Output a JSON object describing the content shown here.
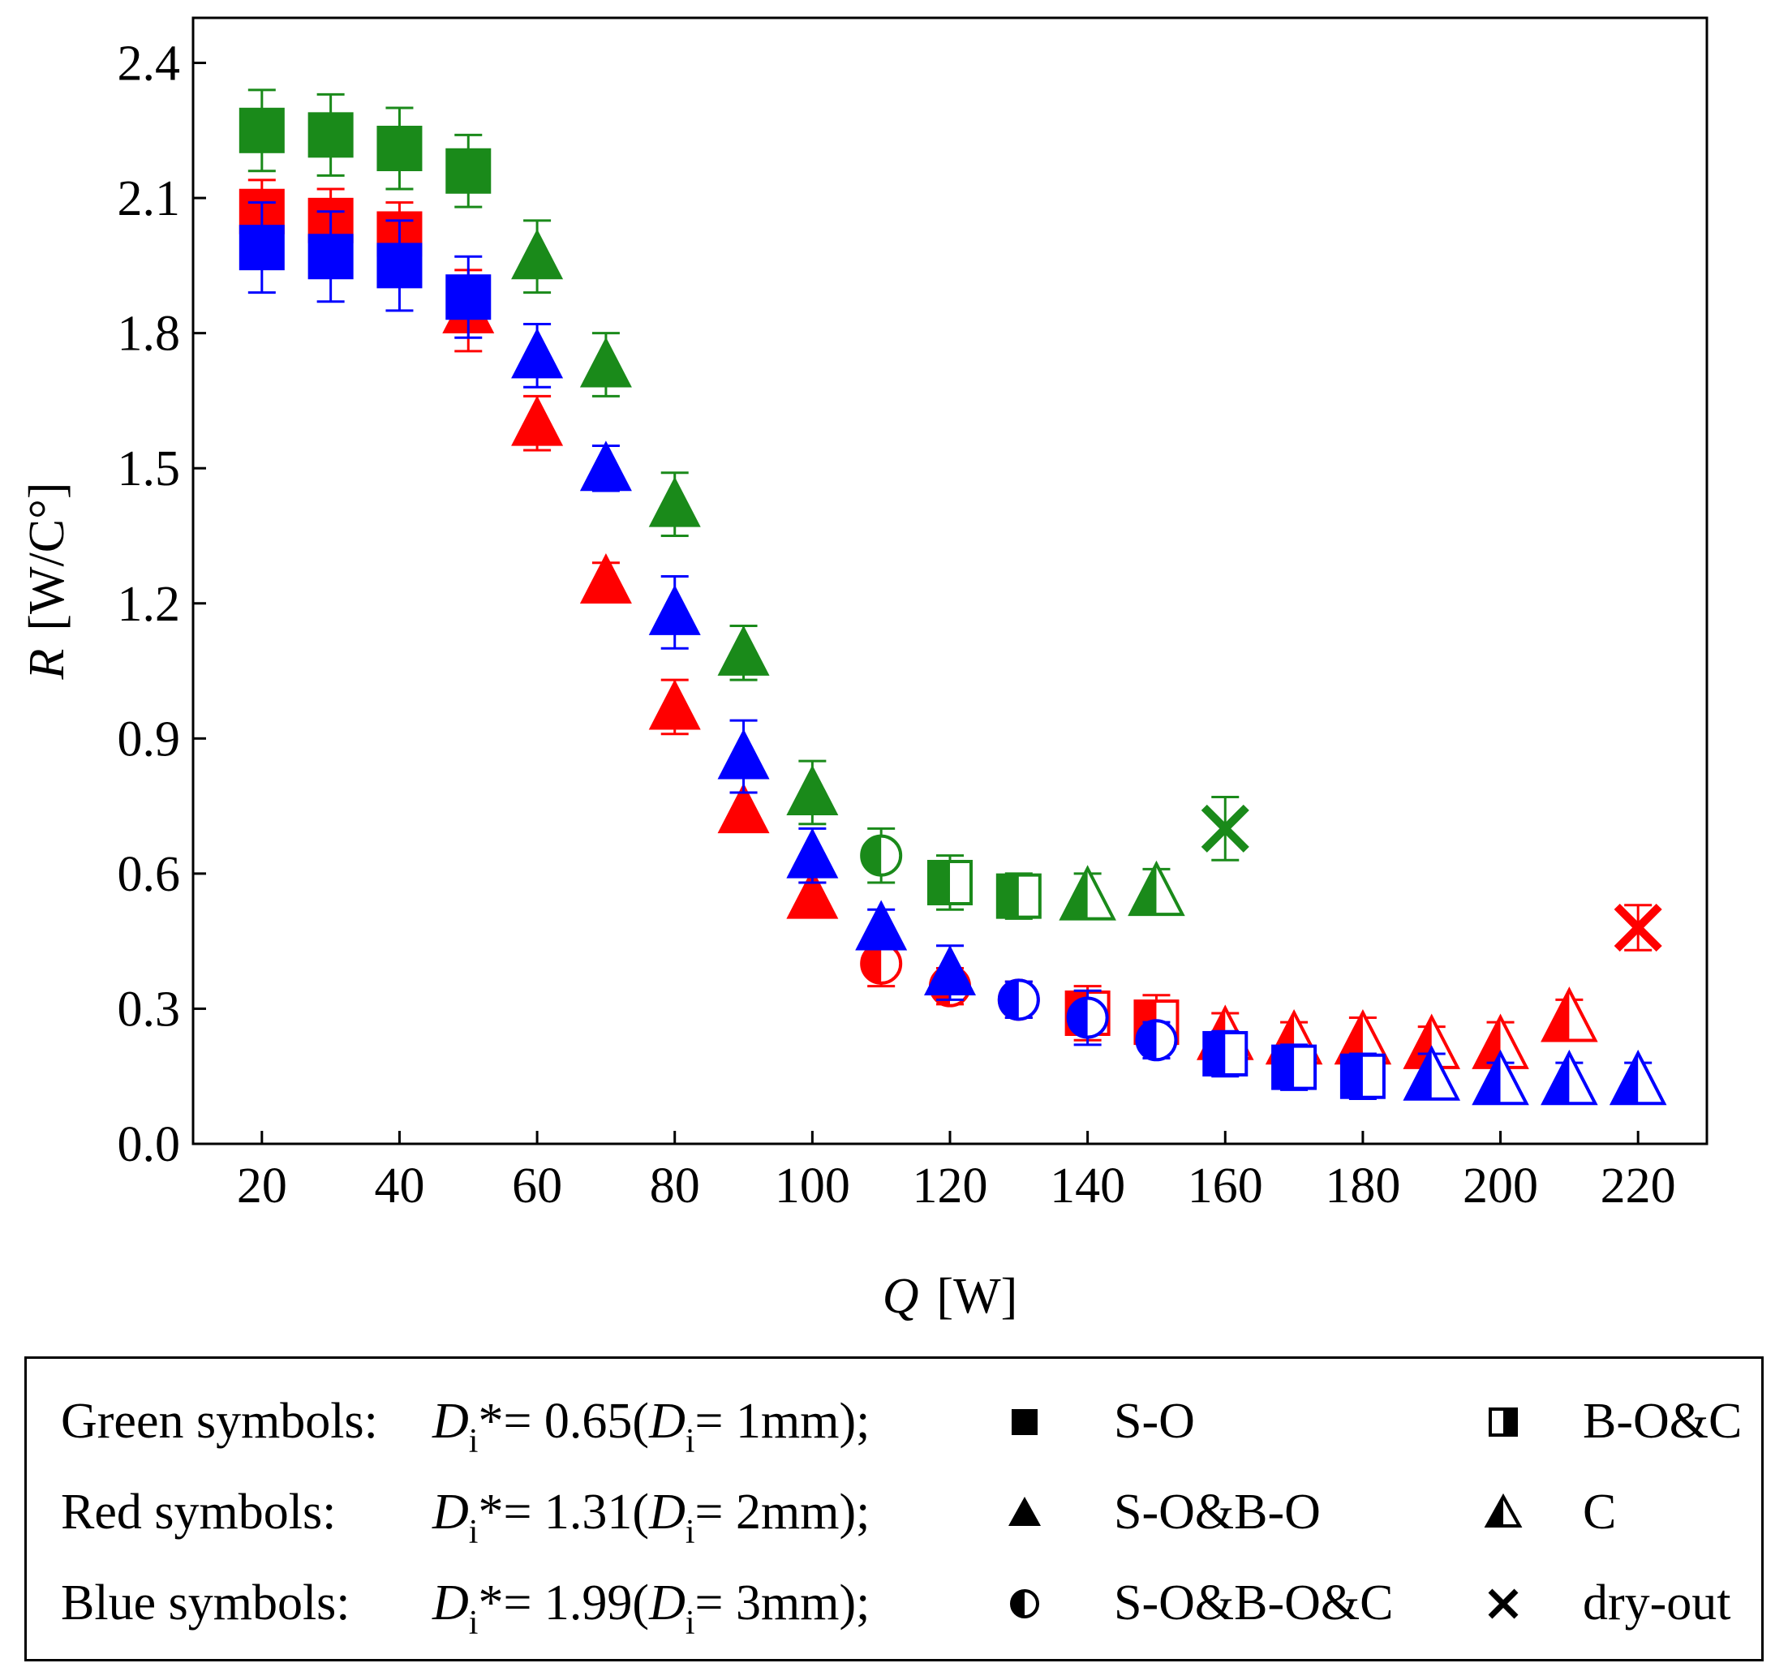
{
  "chart_data": {
    "type": "scatter",
    "xlabel_var": "Q",
    "xlabel_unit": "[W]",
    "ylabel_var": "R",
    "ylabel_unit": "[W/C°]",
    "xlim": [
      10,
      230
    ],
    "ylim": [
      0.0,
      2.5
    ],
    "xticks": [
      20,
      40,
      60,
      80,
      100,
      120,
      140,
      160,
      180,
      200,
      220
    ],
    "xtick_labels": [
      "20",
      "40",
      "60",
      "80",
      "100",
      "120",
      "140",
      "160",
      "180",
      "200",
      "220"
    ],
    "yticks": [
      0.0,
      0.3,
      0.6,
      0.9,
      1.2,
      1.5,
      1.8,
      2.1,
      2.4
    ],
    "ytick_labels": [
      "0.0",
      "0.3",
      "0.6",
      "0.9",
      "1.2",
      "1.5",
      "1.8",
      "2.1",
      "2.4"
    ],
    "series": [
      {
        "name": "Green symbols (D_i = 1mm)",
        "color": "#1a8a1a",
        "points": [
          {
            "x": 20,
            "y": 2.25,
            "err": 0.09,
            "pattern": "S-O"
          },
          {
            "x": 30,
            "y": 2.24,
            "err": 0.09,
            "pattern": "S-O"
          },
          {
            "x": 40,
            "y": 2.21,
            "err": 0.09,
            "pattern": "S-O"
          },
          {
            "x": 50,
            "y": 2.16,
            "err": 0.08,
            "pattern": "S-O"
          },
          {
            "x": 60,
            "y": 1.97,
            "err": 0.08,
            "pattern": "S-O&B-O"
          },
          {
            "x": 70,
            "y": 1.73,
            "err": 0.07,
            "pattern": "S-O&B-O"
          },
          {
            "x": 80,
            "y": 1.42,
            "err": 0.07,
            "pattern": "S-O&B-O"
          },
          {
            "x": 90,
            "y": 1.09,
            "err": 0.06,
            "pattern": "S-O&B-O"
          },
          {
            "x": 100,
            "y": 0.78,
            "err": 0.07,
            "pattern": "S-O&B-O"
          },
          {
            "x": 110,
            "y": 0.64,
            "err": 0.06,
            "pattern": "S-O&B-O&C"
          },
          {
            "x": 120,
            "y": 0.58,
            "err": 0.06,
            "pattern": "B-O&C"
          },
          {
            "x": 130,
            "y": 0.55,
            "err": 0.05,
            "pattern": "B-O&C"
          },
          {
            "x": 140,
            "y": 0.55,
            "err": 0.05,
            "pattern": "C"
          },
          {
            "x": 150,
            "y": 0.56,
            "err": 0.05,
            "pattern": "C"
          },
          {
            "x": 160,
            "y": 0.7,
            "err": 0.07,
            "pattern": "dry-out"
          }
        ]
      },
      {
        "name": "Red symbols (D_i = 2mm)",
        "color": "#ff0000",
        "points": [
          {
            "x": 20,
            "y": 2.07,
            "err": 0.07,
            "pattern": "S-O"
          },
          {
            "x": 30,
            "y": 2.05,
            "err": 0.07,
            "pattern": "S-O"
          },
          {
            "x": 40,
            "y": 2.02,
            "err": 0.07,
            "pattern": "S-O"
          },
          {
            "x": 50,
            "y": 1.85,
            "err": 0.09,
            "pattern": "S-O&B-O"
          },
          {
            "x": 60,
            "y": 1.6,
            "err": 0.06,
            "pattern": "S-O&B-O"
          },
          {
            "x": 70,
            "y": 1.25,
            "err": 0.04,
            "pattern": "S-O&B-O"
          },
          {
            "x": 80,
            "y": 0.97,
            "err": 0.06,
            "pattern": "S-O&B-O"
          },
          {
            "x": 90,
            "y": 0.74,
            "err": 0.04,
            "pattern": "S-O&B-O"
          },
          {
            "x": 100,
            "y": 0.55,
            "err": 0.03,
            "pattern": "S-O&B-O"
          },
          {
            "x": 110,
            "y": 0.4,
            "err": 0.05,
            "pattern": "S-O&B-O&C"
          },
          {
            "x": 120,
            "y": 0.35,
            "err": 0.04,
            "pattern": "S-O&B-O&C"
          },
          {
            "x": 130,
            "y": 0.32,
            "err": 0.04,
            "pattern": "S-O&B-O&C"
          },
          {
            "x": 140,
            "y": 0.29,
            "err": 0.06,
            "pattern": "B-O&C"
          },
          {
            "x": 150,
            "y": 0.27,
            "err": 0.06,
            "pattern": "B-O&C"
          },
          {
            "x": 160,
            "y": 0.24,
            "err": 0.05,
            "pattern": "C"
          },
          {
            "x": 170,
            "y": 0.23,
            "err": 0.04,
            "pattern": "C"
          },
          {
            "x": 180,
            "y": 0.23,
            "err": 0.05,
            "pattern": "C"
          },
          {
            "x": 190,
            "y": 0.22,
            "err": 0.04,
            "pattern": "C"
          },
          {
            "x": 200,
            "y": 0.22,
            "err": 0.05,
            "pattern": "C"
          },
          {
            "x": 210,
            "y": 0.28,
            "err": 0.04,
            "pattern": "C"
          },
          {
            "x": 220,
            "y": 0.48,
            "err": 0.05,
            "pattern": "dry-out"
          }
        ]
      },
      {
        "name": "Blue symbols (D_i = 3mm)",
        "color": "#0000ff",
        "points": [
          {
            "x": 20,
            "y": 1.99,
            "err": 0.1,
            "pattern": "S-O"
          },
          {
            "x": 30,
            "y": 1.97,
            "err": 0.1,
            "pattern": "S-O"
          },
          {
            "x": 40,
            "y": 1.95,
            "err": 0.1,
            "pattern": "S-O"
          },
          {
            "x": 50,
            "y": 1.88,
            "err": 0.09,
            "pattern": "S-O"
          },
          {
            "x": 60,
            "y": 1.75,
            "err": 0.07,
            "pattern": "S-O&B-O"
          },
          {
            "x": 70,
            "y": 1.5,
            "err": 0.05,
            "pattern": "S-O&B-O"
          },
          {
            "x": 80,
            "y": 1.18,
            "err": 0.08,
            "pattern": "S-O&B-O"
          },
          {
            "x": 90,
            "y": 0.86,
            "err": 0.08,
            "pattern": "S-O&B-O"
          },
          {
            "x": 100,
            "y": 0.64,
            "err": 0.06,
            "pattern": "S-O&B-O"
          },
          {
            "x": 110,
            "y": 0.48,
            "err": 0.04,
            "pattern": "S-O&B-O"
          },
          {
            "x": 120,
            "y": 0.38,
            "err": 0.06,
            "pattern": "S-O&B-O"
          },
          {
            "x": 130,
            "y": 0.32,
            "err": 0.04,
            "pattern": "S-O&B-O&C"
          },
          {
            "x": 140,
            "y": 0.28,
            "err": 0.06,
            "pattern": "S-O&B-O&C"
          },
          {
            "x": 150,
            "y": 0.23,
            "err": 0.04,
            "pattern": "S-O&B-O&C"
          },
          {
            "x": 160,
            "y": 0.2,
            "err": 0.05,
            "pattern": "B-O&C"
          },
          {
            "x": 170,
            "y": 0.17,
            "err": 0.05,
            "pattern": "B-O&C"
          },
          {
            "x": 180,
            "y": 0.15,
            "err": 0.05,
            "pattern": "B-O&C"
          },
          {
            "x": 190,
            "y": 0.15,
            "err": 0.05,
            "pattern": "C"
          },
          {
            "x": 200,
            "y": 0.14,
            "err": 0.04,
            "pattern": "C"
          },
          {
            "x": 210,
            "y": 0.14,
            "err": 0.04,
            "pattern": "C"
          },
          {
            "x": 220,
            "y": 0.14,
            "err": 0.04,
            "pattern": "C"
          }
        ]
      }
    ],
    "legend": {
      "position": "bottom",
      "color_rows": [
        {
          "label": "Green symbols:",
          "expr_prefix": "D",
          "sub": "i",
          "expr_mid": "*= 0.65(",
          "expr_d": "D",
          "expr_sub": "i",
          "expr_end": "= 1mm);"
        },
        {
          "label": "Red symbols:",
          "expr_prefix": "D",
          "sub": "i",
          "expr_mid": "*= 1.31(",
          "expr_d": "D",
          "expr_sub": "i",
          "expr_end": "= 2mm);"
        },
        {
          "label": "Blue symbols:",
          "expr_prefix": "D",
          "sub": "i",
          "expr_mid": "*= 1.99(",
          "expr_d": "D",
          "expr_sub": "i",
          "expr_end": "= 3mm);"
        }
      ],
      "patterns": [
        {
          "marker": "square-filled",
          "label": "S-O"
        },
        {
          "marker": "square-half",
          "label": "B-O&C"
        },
        {
          "marker": "triangle-filled",
          "label": "S-O&B-O"
        },
        {
          "marker": "triangle-half",
          "label": "C"
        },
        {
          "marker": "circle-half",
          "label": "S-O&B-O&C"
        },
        {
          "marker": "cross",
          "label": "dry-out"
        }
      ]
    }
  }
}
